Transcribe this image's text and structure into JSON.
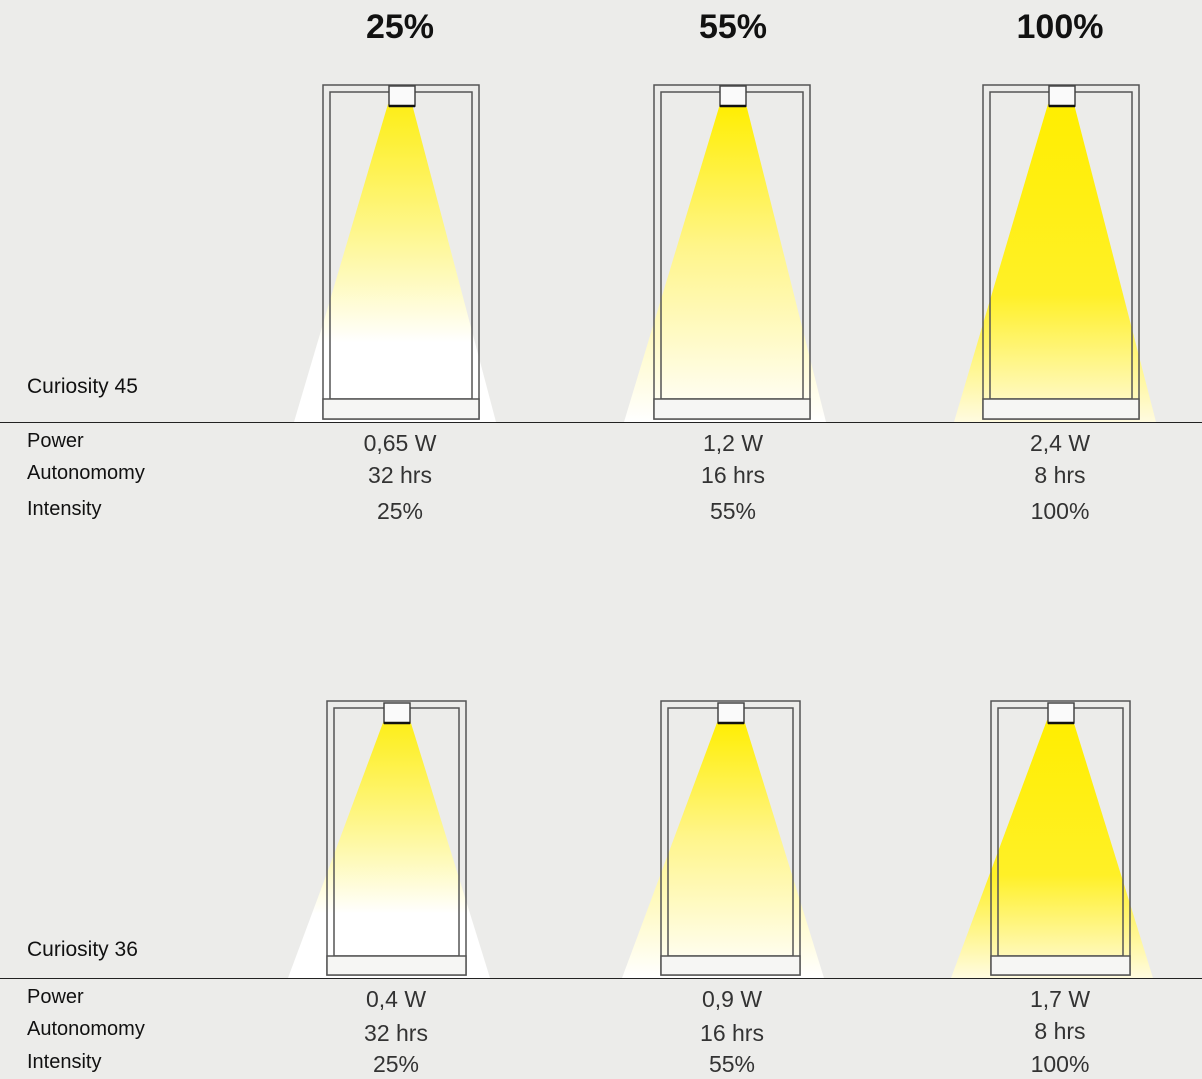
{
  "header": {
    "levels": [
      "25%",
      "55%",
      "100%"
    ]
  },
  "colors": {
    "background": "#ececea",
    "beam": "#ffee00",
    "frame": "#555555",
    "rule": "#222222"
  },
  "row_labels": {
    "power": "Power",
    "autonomy": "Autonomomy",
    "intensity": "Intensity"
  },
  "models": [
    {
      "name": "Curiosity 45",
      "settings": [
        {
          "power": "0,65 W",
          "autonomy": "32 hrs",
          "intensity": "25%",
          "intensity_value": 0.25
        },
        {
          "power": "1,2 W",
          "autonomy": "16 hrs",
          "intensity": "55%",
          "intensity_value": 0.55
        },
        {
          "power": "2,4 W",
          "autonomy": "8 hrs",
          "intensity": "100%",
          "intensity_value": 1.0
        }
      ]
    },
    {
      "name": "Curiosity 36",
      "settings": [
        {
          "power": "0,4 W",
          "autonomy": "32 hrs",
          "intensity": "25%",
          "intensity_value": 0.25
        },
        {
          "power": "0,9 W",
          "autonomy": "16 hrs",
          "intensity": "55%",
          "intensity_value": 0.55
        },
        {
          "power": "1,7 W",
          "autonomy": "8 hrs",
          "intensity": "100%",
          "intensity_value": 1.0
        }
      ]
    }
  ]
}
